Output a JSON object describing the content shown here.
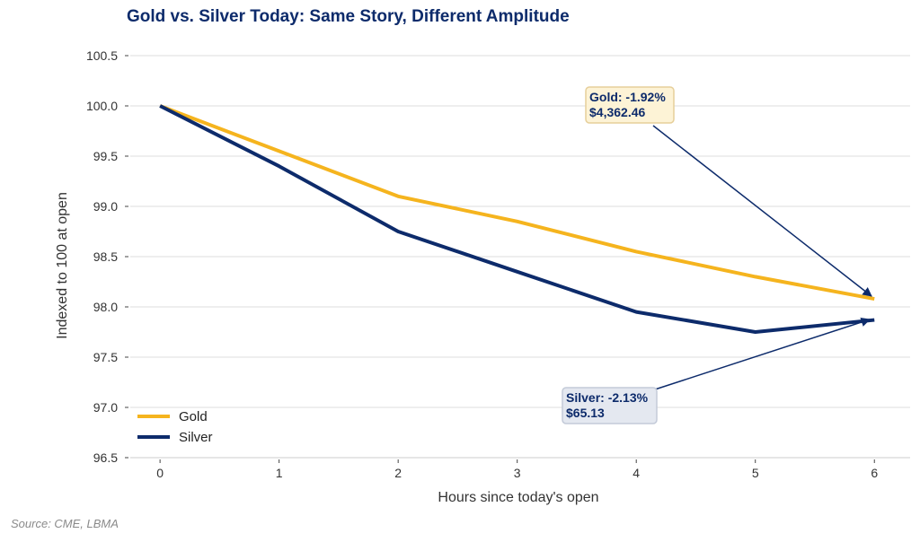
{
  "chart_data": {
    "type": "line",
    "title": "Gold vs. Silver Today: Same Story, Different Amplitude",
    "xlabel": "Hours since today's open",
    "ylabel": "Indexed to 100 at open",
    "x": [
      0,
      1,
      2,
      3,
      4,
      5,
      6
    ],
    "xticks": [
      "0",
      "1",
      "2",
      "3",
      "4",
      "5",
      "6"
    ],
    "xlim": [
      -0.25,
      6.3
    ],
    "ylim": [
      96.5,
      100.5
    ],
    "yticks": [
      "96.5",
      "97.0",
      "97.5",
      "98.0",
      "98.5",
      "99.0",
      "99.5",
      "100.0",
      "100.5"
    ],
    "grid": "horizontal",
    "legend_position": "bottom-left",
    "series": [
      {
        "name": "Gold",
        "color": "#f5b41e",
        "values": [
          100.0,
          99.55,
          99.1,
          98.85,
          98.55,
          98.3,
          98.08
        ]
      },
      {
        "name": "Silver",
        "color": "#0d2b6b",
        "values": [
          100.0,
          99.4,
          98.75,
          98.35,
          97.95,
          97.75,
          97.87
        ]
      }
    ],
    "annotations": [
      {
        "series": "Gold",
        "line1": "Gold: -1.92%",
        "line2": "$4,362.46",
        "bg": "#fdf3d6",
        "border": "#e6cf9a"
      },
      {
        "series": "Silver",
        "line1": "Silver: -2.13%",
        "line2": "$65.13",
        "bg": "#e4e8f0",
        "border": "#c3cad8"
      }
    ],
    "source": "Source: CME, LBMA"
  }
}
